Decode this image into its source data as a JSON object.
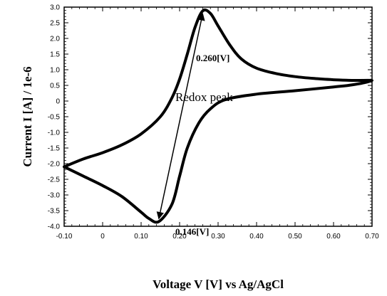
{
  "chart_data": {
    "type": "line",
    "xlabel": "Voltage V [V] vs Ag/AgCl",
    "ylabel": "Current I [A] / 1e-6",
    "xlim": [
      -0.1,
      0.7
    ],
    "ylim": [
      -4.0,
      3.0
    ],
    "x_ticks": [
      -0.1,
      0,
      0.1,
      0.2,
      0.3,
      0.4,
      0.5,
      0.6,
      0.7
    ],
    "x_tick_labels": [
      "-0.10",
      "0",
      "0.10",
      "0.20",
      "0.30",
      "0.40",
      "0.50",
      "0.60",
      "0.70"
    ],
    "y_ticks": [
      3.0,
      2.5,
      2.0,
      1.5,
      1.0,
      0.5,
      0,
      -0.5,
      -1.0,
      -1.5,
      -2.0,
      -2.5,
      -3.0,
      -3.5,
      -4.0
    ],
    "y_tick_labels": [
      "3.0",
      "2.5",
      "2.0",
      "1.5",
      "1.0",
      "0.5",
      "0",
      "-0.5",
      "-1.0",
      "-1.5",
      "-2.0",
      "-2.5",
      "-3.0",
      "-3.5",
      "-4.0"
    ],
    "grid": false,
    "series": [
      {
        "values": [
          [
            -0.1,
            -2.1
          ],
          [
            -0.05,
            -1.85
          ],
          [
            0.0,
            -1.65
          ],
          [
            0.05,
            -1.4
          ],
          [
            0.1,
            -1.05
          ],
          [
            0.15,
            -0.5
          ],
          [
            0.18,
            0.1
          ],
          [
            0.2,
            0.7
          ],
          [
            0.22,
            1.5
          ],
          [
            0.24,
            2.35
          ],
          [
            0.26,
            2.88
          ],
          [
            0.28,
            2.8
          ],
          [
            0.3,
            2.4
          ],
          [
            0.33,
            1.8
          ],
          [
            0.36,
            1.35
          ],
          [
            0.4,
            1.05
          ],
          [
            0.45,
            0.88
          ],
          [
            0.5,
            0.78
          ],
          [
            0.55,
            0.72
          ],
          [
            0.6,
            0.68
          ],
          [
            0.65,
            0.66
          ],
          [
            0.7,
            0.65
          ],
          [
            0.65,
            0.52
          ],
          [
            0.6,
            0.45
          ],
          [
            0.5,
            0.33
          ],
          [
            0.4,
            0.22
          ],
          [
            0.32,
            0.05
          ],
          [
            0.28,
            -0.25
          ],
          [
            0.25,
            -0.7
          ],
          [
            0.22,
            -1.5
          ],
          [
            0.2,
            -2.4
          ],
          [
            0.18,
            -3.3
          ],
          [
            0.146,
            -3.85
          ],
          [
            0.12,
            -3.75
          ],
          [
            0.1,
            -3.55
          ],
          [
            0.05,
            -3.05
          ],
          [
            0.0,
            -2.7
          ],
          [
            -0.05,
            -2.4
          ],
          [
            -0.1,
            -2.1
          ]
        ]
      }
    ],
    "annotations": [
      {
        "text": "0.260[V]",
        "x": 0.26,
        "y": 2.88
      },
      {
        "text": "0.146[V]",
        "x": 0.146,
        "y": -3.85
      },
      {
        "text": "Redox peak"
      }
    ]
  }
}
